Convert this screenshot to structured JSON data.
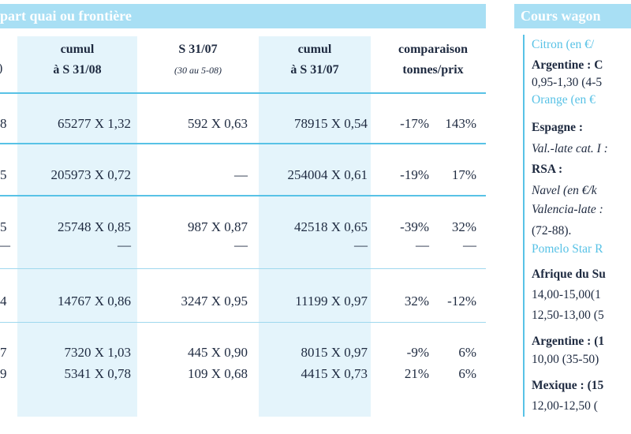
{
  "left_header": "part quai ou frontière",
  "right_header": "Cours wagon",
  "columns": [
    {
      "line1": "cumul",
      "line2": "à S 31/08",
      "sub": ""
    },
    {
      "line1": "S 31/07",
      "line2": "",
      "sub": "(30 au 5-08)"
    },
    {
      "line1": "cumul",
      "line2": "à S 31/07",
      "sub": ""
    },
    {
      "line1": "comparaison",
      "line2": "tonnes/prix",
      "sub": ""
    }
  ],
  "partial_header_glyph": ")",
  "rows": [
    {
      "first": "8",
      "a": "65277 X 1,32",
      "b": "592 X 0,63",
      "c": "78915 X 0,54",
      "d": "-17%",
      "e": "143%"
    },
    {
      "first": "5",
      "a": "205973 X 0,72",
      "b": "—",
      "c": "254004 X 0,61",
      "d": "-19%",
      "e": "17%"
    },
    {
      "first": "5",
      "a": "25748 X 0,85",
      "b": "987 X 0,87",
      "c": "42518 X 0,65",
      "d": "-39%",
      "e": "32%"
    },
    {
      "first": "—",
      "a": "—",
      "b": "—",
      "c": "—",
      "d": "—",
      "e": "—"
    },
    {
      "first": "4",
      "a": "14767 X 0,86",
      "b": "3247 X 0,95",
      "c": "11199 X 0,97",
      "d": "32%",
      "e": "-12%"
    },
    {
      "first": "7",
      "a": "7320 X 1,03",
      "b": "445 X 0,90",
      "c": "8015 X 0,97",
      "d": "-9%",
      "e": "6%"
    },
    {
      "first": "9",
      "a": "5341 X 0,78",
      "b": "109 X 0,68",
      "c": "4415 X 0,73",
      "d": "21%",
      "e": "6%"
    }
  ],
  "side_lines": [
    {
      "text": "Citron (en €/",
      "style": "blue"
    },
    {
      "text": "Argentine : C",
      "style": "b"
    },
    {
      "text": "0,95-1,30 (4-5",
      "style": ""
    },
    {
      "text": "Orange (en €",
      "style": "blue"
    },
    {
      "text": "Espagne :",
      "style": "b"
    },
    {
      "text": "Val.-late cat. I :",
      "style": "it"
    },
    {
      "text": "RSA :",
      "style": "b"
    },
    {
      "text": "Navel (en €/k",
      "style": "it"
    },
    {
      "text": "Valencia-late :",
      "style": "it"
    },
    {
      "text": "(72-88).",
      "style": ""
    },
    {
      "text": "Pomelo Star R",
      "style": "blue"
    },
    {
      "text": "Afrique du Su",
      "style": "b"
    },
    {
      "text": "14,00-15,00(1",
      "style": ""
    },
    {
      "text": "12,50-13,00 (5",
      "style": ""
    },
    {
      "text": "Argentine : (1",
      "style": "b"
    },
    {
      "text": "10,00 (35-50)",
      "style": ""
    },
    {
      "text": "Mexique : (15",
      "style": "b"
    },
    {
      "text": "12,00-12,50 (",
      "style": ""
    }
  ]
}
